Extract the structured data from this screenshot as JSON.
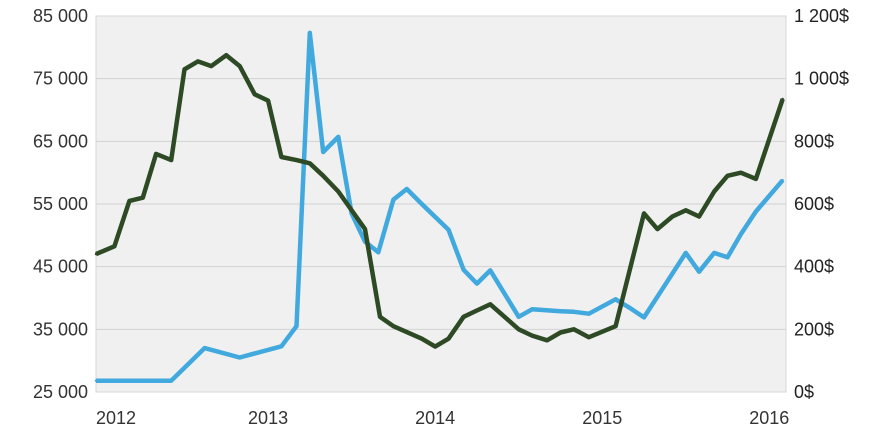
{
  "chart_data": {
    "type": "line",
    "title": "",
    "xlabel": "",
    "x_ticks": [
      "2012",
      "2013",
      "2014",
      "2015",
      "2016"
    ],
    "xlim": [
      2011.97,
      2016.1
    ],
    "y_left": {
      "ylim": [
        25000,
        85000
      ],
      "ticks": [
        25000,
        35000,
        45000,
        55000,
        65000,
        75000,
        85000
      ],
      "tick_labels": [
        "25 000",
        "35 000",
        "45 000",
        "55 000",
        "65 000",
        "75 000",
        "85 000"
      ]
    },
    "y_right": {
      "ylim": [
        0,
        1200
      ],
      "ticks": [
        0,
        200,
        400,
        600,
        800,
        1000,
        1200
      ],
      "tick_labels": [
        "0$",
        "200$",
        "400$",
        "600$",
        "800$",
        "1 000$",
        "1 200$"
      ]
    },
    "grid": true,
    "series": [
      {
        "axis": "left",
        "color": "#41a9dd",
        "x": [
          2011.97,
          2012.42,
          2012.62,
          2012.83,
          2013.08,
          2013.17,
          2013.25,
          2013.33,
          2013.42,
          2013.5,
          2013.58,
          2013.66,
          2013.75,
          2013.83,
          2013.92,
          2014.08,
          2014.17,
          2014.25,
          2014.33,
          2014.5,
          2014.58,
          2014.75,
          2014.83,
          2014.92,
          2015.08,
          2015.16,
          2015.25,
          2015.5,
          2015.58,
          2015.67,
          2015.75,
          2015.83,
          2015.92,
          2016.08
        ],
        "y": [
          26800,
          26800,
          32000,
          30500,
          32300,
          35500,
          82300,
          63300,
          65700,
          53500,
          49000,
          47300,
          55700,
          57400,
          55000,
          50900,
          44500,
          42300,
          44400,
          37000,
          38200,
          37900,
          37800,
          37500,
          39800,
          38500,
          36900,
          47200,
          44200,
          47200,
          46500,
          50200,
          53800,
          58800
        ]
      },
      {
        "axis": "right",
        "color": "#2d4a25",
        "x": [
          2011.97,
          2012.08,
          2012.17,
          2012.25,
          2012.33,
          2012.42,
          2012.5,
          2012.58,
          2012.66,
          2012.75,
          2012.83,
          2012.92,
          2013.0,
          2013.08,
          2013.17,
          2013.25,
          2013.33,
          2013.42,
          2013.58,
          2013.67,
          2013.75,
          2013.92,
          2014.0,
          2014.08,
          2014.17,
          2014.25,
          2014.33,
          2014.5,
          2014.58,
          2014.67,
          2014.75,
          2014.83,
          2014.92,
          2015.08,
          2015.16,
          2015.25,
          2015.33,
          2015.42,
          2015.5,
          2015.58,
          2015.67,
          2015.75,
          2015.83,
          2015.92,
          2016.08
        ],
        "y": [
          440,
          465,
          610,
          620,
          760,
          740,
          1030,
          1055,
          1040,
          1075,
          1040,
          950,
          930,
          750,
          740,
          730,
          690,
          640,
          520,
          240,
          210,
          170,
          145,
          170,
          240,
          260,
          280,
          200,
          180,
          165,
          190,
          200,
          175,
          210,
          380,
          570,
          520,
          560,
          580,
          560,
          640,
          690,
          700,
          680,
          935
        ]
      }
    ]
  }
}
